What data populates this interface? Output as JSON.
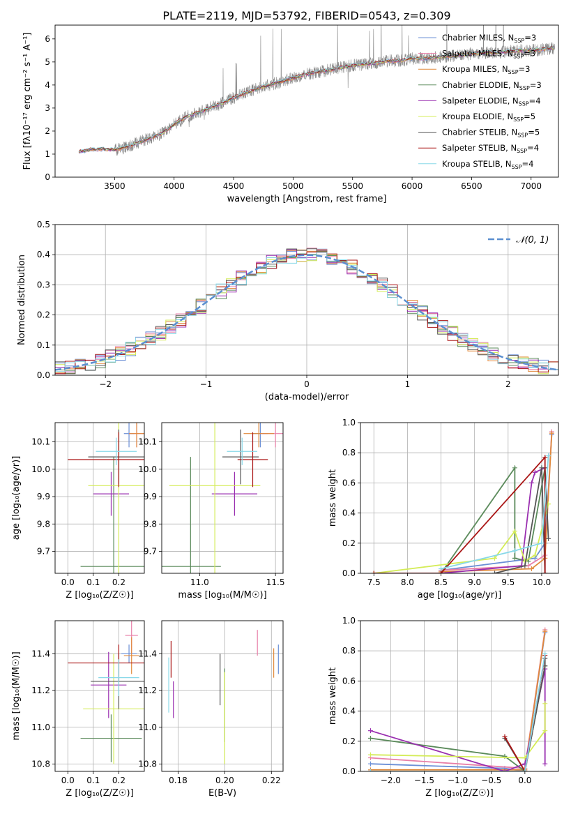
{
  "figure": {
    "title": "PLATE=2119, MJD=53792, FIBERID=0543, z=0.309"
  },
  "colors": {
    "chabrier_miles": "#6b8fd6",
    "salpeter_miles": "#e87fa8",
    "kroupa_miles": "#e08a3c",
    "chabrier_elodie": "#5a8a5a",
    "salpeter_elodie": "#9a2fb0",
    "kroupa_elodie": "#d4ec58",
    "chabrier_stelib": "#555555",
    "salpeter_stelib": "#aa1515",
    "kroupa_stelib": "#88d8e8",
    "observed": "#888888",
    "gaussian": "#5b8fd0",
    "grid": "#b0b0b0"
  },
  "chart_data": [
    {
      "id": "spectrum",
      "type": "line",
      "xlabel": "wavelength [Angstrom, rest frame]",
      "ylabel": "Flux [fλ10⁻¹⁷ erg cm⁻² s⁻¹ A⁻¹]",
      "xlim": [
        3000,
        7230
      ],
      "ylim": [
        0,
        6.6
      ],
      "xticks": [
        3500,
        4000,
        4500,
        5000,
        5500,
        6000,
        6500,
        7000
      ],
      "yticks": [
        0,
        1,
        2,
        3,
        4,
        5,
        6
      ],
      "legend": "top-right",
      "series": [
        {
          "name": "Chabrier MILES, N_SSP=3",
          "key": "chabrier_miles"
        },
        {
          "name": "Salpeter MILES, N_SSP=3",
          "key": "salpeter_miles"
        },
        {
          "name": "Kroupa MILES, N_SSP=3",
          "key": "kroupa_miles"
        },
        {
          "name": "Chabrier ELODIE, N_SSP=3",
          "key": "chabrier_elodie"
        },
        {
          "name": "Salpeter ELODIE, N_SSP=4",
          "key": "salpeter_elodie"
        },
        {
          "name": "Kroupa ELODIE, N_SSP=5",
          "key": "kroupa_elodie"
        },
        {
          "name": "Chabrier STELIB, N_SSP=5",
          "key": "chabrier_stelib"
        },
        {
          "name": "Salpeter STELIB, N_SSP=4",
          "key": "salpeter_stelib"
        },
        {
          "name": "Kroupa STELIB, N_SSP=4",
          "key": "kroupa_stelib"
        }
      ],
      "continuum": {
        "x": [
          3200,
          3300,
          3400,
          3500,
          3600,
          3700,
          3800,
          3900,
          4000,
          4100,
          4200,
          4300,
          4400,
          4500,
          4600,
          4700,
          4800,
          4900,
          5000,
          5100,
          5200,
          5300,
          5400,
          5500,
          5600,
          5700,
          5800,
          5900,
          6000,
          6100,
          6200,
          6300,
          6400,
          6500,
          6600,
          6700,
          6800,
          6900,
          7000,
          7100,
          7200
        ],
        "y": [
          1.1,
          1.2,
          1.22,
          1.18,
          1.3,
          1.5,
          1.7,
          1.9,
          2.3,
          2.6,
          2.8,
          3.0,
          3.2,
          3.45,
          3.65,
          3.85,
          4.0,
          4.15,
          4.3,
          4.45,
          4.55,
          4.65,
          4.75,
          4.85,
          4.9,
          4.95,
          5.05,
          5.05,
          5.15,
          5.15,
          5.2,
          5.25,
          5.3,
          5.35,
          5.4,
          5.4,
          5.45,
          5.5,
          5.5,
          5.55,
          5.6
        ]
      }
    },
    {
      "id": "residuals",
      "type": "line",
      "xlabel": "(data-model)/error",
      "ylabel": "Normed distribution",
      "xlim": [
        -2.5,
        2.5
      ],
      "ylim": [
        0,
        0.5
      ],
      "xticks": [
        -2,
        -1,
        0,
        1,
        2
      ],
      "yticks": [
        0.0,
        0.1,
        0.2,
        0.3,
        0.4,
        0.5
      ],
      "legend": "top-right",
      "gaussian_label": "𝒩(0, 1)"
    },
    {
      "id": "age_vs_Z",
      "type": "scatter",
      "xlabel": "Z [log₁₀(Z/Z☉)]",
      "ylabel": "age [log₁₀(age/yr)]",
      "xlim": [
        -0.05,
        0.3
      ],
      "ylim": [
        9.62,
        10.17
      ],
      "xticks": [
        0.0,
        0.1,
        0.2
      ],
      "yticks": [
        9.7,
        9.8,
        9.9,
        10.0,
        10.1
      ],
      "points": [
        {
          "key": "chabrier_miles",
          "x": 0.24,
          "xerr": 0.02,
          "y": 10.13,
          "yerr": 0.05
        },
        {
          "key": "salpeter_miles",
          "x": 0.27,
          "xerr": 0.03,
          "y": 10.13,
          "yerr": 0.05
        },
        {
          "key": "kroupa_miles",
          "x": 0.27,
          "xerr": 0.03,
          "y": 10.13,
          "yerr": 0.05
        },
        {
          "key": "chabrier_elodie",
          "x": 0.18,
          "xerr": 0.13,
          "y": 9.645,
          "yerr": 0.4
        },
        {
          "key": "salpeter_elodie",
          "x": 0.17,
          "xerr": 0.07,
          "y": 9.91,
          "yerr": 0.08
        },
        {
          "key": "kroupa_elodie",
          "x": 0.2,
          "xerr": 0.12,
          "y": 9.94,
          "yerr": 0.35
        },
        {
          "key": "chabrier_stelib",
          "x": 0.2,
          "xerr": 0.12,
          "y": 10.045,
          "yerr": 0.1
        },
        {
          "key": "salpeter_stelib",
          "x": 0.2,
          "xerr": 0.2,
          "y": 10.035,
          "yerr": 0.1
        },
        {
          "key": "kroupa_stelib",
          "x": 0.19,
          "xerr": 0.08,
          "y": 10.065,
          "yerr": 0.05
        }
      ]
    },
    {
      "id": "age_vs_mass",
      "type": "scatter",
      "xlabel": "mass [log₁₀(M/M☉)]",
      "ylabel": "",
      "xlim": [
        10.75,
        11.55
      ],
      "ylim": [
        9.62,
        10.17
      ],
      "xticks": [
        11.0,
        11.5
      ],
      "yticks": [
        9.7,
        9.8,
        9.9,
        10.0,
        10.1
      ],
      "points": [
        {
          "key": "chabrier_miles",
          "x": 11.4,
          "xerr": 0.05,
          "y": 10.13,
          "yerr": 0.05
        },
        {
          "key": "salpeter_miles",
          "x": 11.5,
          "xerr": 0.1,
          "y": 10.13,
          "yerr": 0.05
        },
        {
          "key": "kroupa_miles",
          "x": 11.39,
          "xerr": 0.1,
          "y": 10.13,
          "yerr": 0.05
        },
        {
          "key": "chabrier_elodie",
          "x": 10.94,
          "xerr": 0.2,
          "y": 9.645,
          "yerr": 0.4
        },
        {
          "key": "salpeter_elodie",
          "x": 11.23,
          "xerr": 0.15,
          "y": 9.91,
          "yerr": 0.08
        },
        {
          "key": "kroupa_elodie",
          "x": 11.1,
          "xerr": 0.3,
          "y": 9.94,
          "yerr": 0.35
        },
        {
          "key": "chabrier_stelib",
          "x": 11.27,
          "xerr": 0.12,
          "y": 10.045,
          "yerr": 0.1
        },
        {
          "key": "salpeter_stelib",
          "x": 11.35,
          "xerr": 0.1,
          "y": 10.035,
          "yerr": 0.1
        },
        {
          "key": "kroupa_stelib",
          "x": 11.28,
          "xerr": 0.1,
          "y": 10.065,
          "yerr": 0.05
        }
      ]
    },
    {
      "id": "mass_weight_vs_age",
      "type": "line",
      "xlabel": "age [log₁₀(age/yr)]",
      "ylabel": "mass weight",
      "xlim": [
        7.3,
        10.25
      ],
      "ylim": [
        0,
        1.0
      ],
      "xticks": [
        7.5,
        8.0,
        8.5,
        9.0,
        9.5,
        10.0
      ],
      "yticks": [
        0.0,
        0.2,
        0.4,
        0.6,
        0.8,
        1.0
      ],
      "series": [
        {
          "key": "chabrier_miles",
          "x": [
            8.5,
            9.9,
            10.05,
            10.15
          ],
          "y": [
            0.02,
            0.1,
            0.2,
            0.92
          ]
        },
        {
          "key": "salpeter_miles",
          "x": [
            8.5,
            9.8,
            10.05,
            10.15
          ],
          "y": [
            0.02,
            0.05,
            0.12,
            0.94
          ]
        },
        {
          "key": "kroupa_miles",
          "x": [
            8.5,
            9.85,
            10.05,
            10.15
          ],
          "y": [
            0.01,
            0.03,
            0.1,
            0.93
          ]
        },
        {
          "key": "chabrier_elodie",
          "x": [
            8.5,
            9.6,
            9.6,
            9.8,
            10.05
          ],
          "y": [
            0.0,
            0.7,
            0.1,
            0.08,
            0.7
          ]
        },
        {
          "key": "salpeter_elodie",
          "x": [
            8.5,
            9.7,
            9.85,
            9.9,
            10.05
          ],
          "y": [
            0.0,
            0.05,
            0.6,
            0.67,
            0.7
          ]
        },
        {
          "key": "kroupa_elodie",
          "x": [
            7.5,
            9.3,
            9.6,
            9.75,
            9.9,
            10.1
          ],
          "y": [
            0.0,
            0.1,
            0.28,
            0.08,
            0.12,
            0.46
          ]
        },
        {
          "key": "chabrier_stelib",
          "x": [
            9.3,
            9.75,
            10.0,
            10.05,
            10.05,
            10.1
          ],
          "y": [
            0.0,
            0.05,
            0.7,
            0.0,
            0.7,
            0.23
          ]
        },
        {
          "key": "salpeter_stelib",
          "x": [
            7.5,
            8.5,
            10.05,
            10.05
          ],
          "y": [
            0.0,
            0.0,
            0.77,
            0.0
          ]
        },
        {
          "key": "kroupa_stelib",
          "x": [
            8.5,
            9.6,
            10.0,
            10.1
          ],
          "y": [
            0.03,
            0.15,
            0.2,
            0.78
          ]
        }
      ]
    },
    {
      "id": "mass_vs_Z",
      "type": "scatter",
      "xlabel": "Z [log₁₀(Z/Z☉)]",
      "ylabel": "mass [log₁₀(M/M☉)]",
      "xlim": [
        -0.05,
        0.3
      ],
      "ylim": [
        10.76,
        11.58
      ],
      "xticks": [
        0.0,
        0.1,
        0.2
      ],
      "yticks": [
        10.8,
        11.0,
        11.2,
        11.4
      ],
      "points": [
        {
          "key": "chabrier_miles",
          "x": 0.24,
          "xerr": 0.03,
          "y": 11.4,
          "yerr": 0.05
        },
        {
          "key": "salpeter_miles",
          "x": 0.25,
          "xerr": 0.025,
          "y": 11.5,
          "yerr": 0.1
        },
        {
          "key": "kroupa_miles",
          "x": 0.25,
          "xerr": 0.03,
          "y": 11.39,
          "yerr": 0.1
        },
        {
          "key": "chabrier_elodie",
          "x": 0.17,
          "xerr": 0.12,
          "y": 10.94,
          "yerr": 0.13
        },
        {
          "key": "salpeter_elodie",
          "x": 0.16,
          "xerr": 0.07,
          "y": 11.23,
          "yerr": 0.18
        },
        {
          "key": "kroupa_elodie",
          "x": 0.18,
          "xerr": 0.12,
          "y": 11.1,
          "yerr": 0.3
        },
        {
          "key": "chabrier_stelib",
          "x": 0.2,
          "xerr": 0.11,
          "y": 11.25,
          "yerr": 0.15
        },
        {
          "key": "salpeter_stelib",
          "x": 0.2,
          "xerr": 0.2,
          "y": 11.35,
          "yerr": 0.1
        },
        {
          "key": "kroupa_stelib",
          "x": 0.2,
          "xerr": 0.08,
          "y": 11.27,
          "yerr": 0.1
        }
      ]
    },
    {
      "id": "mass_vs_ebv",
      "type": "scatter",
      "xlabel": "E(B-V)",
      "ylabel": "",
      "xlim": [
        0.173,
        0.225
      ],
      "ylim": [
        10.76,
        11.58
      ],
      "xticks": [
        0.18,
        0.2,
        0.22
      ],
      "yticks": [
        10.8,
        11.0,
        11.2,
        11.4
      ],
      "points": [
        {
          "key": "chabrier_miles",
          "x": 0.223,
          "yerr": 0.08,
          "y": 11.37
        },
        {
          "key": "salpeter_miles",
          "x": 0.214,
          "yerr": 0.07,
          "y": 11.46
        },
        {
          "key": "kroupa_miles",
          "x": 0.221,
          "yerr": 0.08,
          "y": 11.35
        },
        {
          "key": "chabrier_elodie",
          "x": 0.2,
          "yerr": 0.2,
          "y": 11.12
        },
        {
          "key": "salpeter_elodie",
          "x": 0.178,
          "yerr": 0.1,
          "y": 11.15
        },
        {
          "key": "kroupa_elodie",
          "x": 0.2,
          "yerr": 0.25,
          "y": 11.05
        },
        {
          "key": "chabrier_stelib",
          "x": 0.198,
          "yerr": 0.14,
          "y": 11.26
        },
        {
          "key": "salpeter_stelib",
          "x": 0.177,
          "yerr": 0.1,
          "y": 11.37
        },
        {
          "key": "kroupa_stelib",
          "x": 0.176,
          "yerr": 0.15,
          "y": 11.23
        }
      ]
    },
    {
      "id": "mass_weight_vs_Z",
      "type": "line",
      "xlabel": "Z [log₁₀(Z/Z☉)]",
      "ylabel": "mass weight",
      "xlim": [
        -2.45,
        0.5
      ],
      "ylim": [
        0,
        1.0
      ],
      "xticks": [
        -2.0,
        -1.5,
        -1.0,
        -0.5,
        0.0
      ],
      "yticks": [
        0.0,
        0.2,
        0.4,
        0.6,
        0.8,
        1.0
      ],
      "series": [
        {
          "key": "chabrier_miles",
          "x": [
            -2.3,
            -0.3,
            0.0,
            0.3
          ],
          "y": [
            0.05,
            0.02,
            0.0,
            0.92
          ]
        },
        {
          "key": "salpeter_miles",
          "x": [
            -2.3,
            0.0,
            0.3
          ],
          "y": [
            0.09,
            0.02,
            0.94
          ]
        },
        {
          "key": "kroupa_miles",
          "x": [
            -2.3,
            0.0,
            0.3
          ],
          "y": [
            0.01,
            0.01,
            0.93
          ]
        },
        {
          "key": "chabrier_elodie",
          "x": [
            -2.3,
            -0.3,
            0.0,
            0.3
          ],
          "y": [
            0.22,
            0.1,
            0.0,
            0.7
          ]
        },
        {
          "key": "salpeter_elodie",
          "x": [
            -2.3,
            -0.3,
            0.0,
            0.3,
            0.3
          ],
          "y": [
            0.27,
            0.0,
            0.05,
            0.68,
            0.05
          ]
        },
        {
          "key": "kroupa_elodie",
          "x": [
            -2.3,
            0.0,
            0.3,
            0.3
          ],
          "y": [
            0.11,
            0.09,
            0.27,
            0.45
          ]
        },
        {
          "key": "chabrier_stelib",
          "x": [
            -0.3,
            0.0,
            0.3,
            0.3
          ],
          "y": [
            0.22,
            0.0,
            0.7,
            0.75
          ]
        },
        {
          "key": "salpeter_stelib",
          "x": [
            -0.3,
            0.0,
            0.3
          ],
          "y": [
            0.23,
            0.0,
            0.77
          ]
        },
        {
          "key": "kroupa_stelib",
          "x": [
            -2.3,
            0.0,
            0.3
          ],
          "y": [
            0.0,
            0.0,
            0.78
          ]
        }
      ]
    }
  ]
}
